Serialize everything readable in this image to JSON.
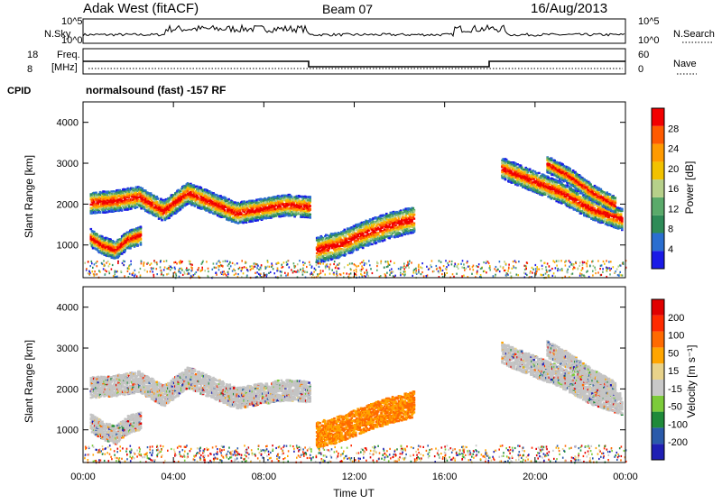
{
  "header": {
    "station": "Adak West (fitACF)",
    "beam": "Beam 07",
    "date": "16/Aug/2013"
  },
  "strips": {
    "nsky_label": "N.Sky",
    "nsky_ticks": [
      "10^5",
      "10^0"
    ],
    "nsearch_label": "N.Search",
    "nsearch_ticks": [
      "10^5",
      "10^0"
    ],
    "freq_label_top": "Freq.",
    "freq_label_unit": "[MHz]",
    "freq_ticks": [
      "18",
      "8"
    ],
    "nave_label": "Nave",
    "nave_ticks": [
      "60",
      "0"
    ],
    "cpid_label": "CPID",
    "cpid_text": "normalsound (fast) -157 RF"
  },
  "colors": {
    "power": [
      "#1a1ae6",
      "#2a6ed0",
      "#2e8b57",
      "#5aaa6a",
      "#b6d08a",
      "#f2c200",
      "#ff9a00",
      "#ff5a00",
      "#f20000"
    ],
    "velocity": [
      "#1f1fb4",
      "#2a5aaa",
      "#1f8a3a",
      "#7ccb3a",
      "#c8c8c8",
      "#e8d28a",
      "#ffa500",
      "#ff6a00",
      "#ff2a00",
      "#e00000"
    ],
    "ground_scatter": "#c4c4c4"
  },
  "chart_data": [
    {
      "type": "heatmap",
      "panel": "power",
      "x_ticks": [
        "00:00",
        "04:00",
        "08:00",
        "12:00",
        "16:00",
        "20:00",
        "00:00"
      ],
      "ylabel": "Slant Range [km]",
      "y_ticks": [
        1000,
        2000,
        3000,
        4000
      ],
      "ylim": [
        200,
        4500
      ],
      "colorbar_label": "Power [dB]",
      "colorbar_ticks": [
        "4",
        "8",
        "12",
        "16",
        "20",
        "24",
        "28"
      ],
      "bands": [
        {
          "t": [
            0.3,
            10.0
          ],
          "center": [
            2050,
            2100,
            2200,
            1850,
            2300,
            2050,
            1800,
            1900,
            2000,
            1950
          ],
          "width": 260
        },
        {
          "t": [
            0.3,
            2.5
          ],
          "center": [
            1200,
            1000,
            900,
            1150,
            1250
          ],
          "width": 220
        },
        {
          "t": [
            10.3,
            14.6
          ],
          "center": [
            900,
            1050,
            1300,
            1500,
            1650
          ],
          "width": 320
        },
        {
          "t": [
            18.5,
            23.8
          ],
          "center": [
            2900,
            2600,
            2300,
            1900,
            1650
          ],
          "width": 260
        },
        {
          "t": [
            20.5,
            23.5
          ],
          "center": [
            3000,
            2700,
            2300,
            2000
          ],
          "width": 200
        }
      ]
    },
    {
      "type": "heatmap",
      "panel": "velocity",
      "x_ticks": [
        "00:00",
        "04:00",
        "08:00",
        "12:00",
        "16:00",
        "20:00",
        "00:00"
      ],
      "xlabel": "Time UT",
      "ylabel": "Slant Range [km]",
      "y_ticks": [
        1000,
        2000,
        3000,
        4000
      ],
      "ylim": [
        200,
        4500
      ],
      "colorbar_label": "Velocity [m s⁻¹]",
      "colorbar_ticks": [
        "200",
        "100",
        "50",
        "15",
        "-15",
        "-50",
        "-100",
        "-200"
      ],
      "bands": [
        {
          "t": [
            0.3,
            10.0
          ],
          "center": [
            2050,
            2100,
            2200,
            1850,
            2300,
            2050,
            1800,
            1900,
            2000,
            1950
          ],
          "width": 260
        },
        {
          "t": [
            0.3,
            2.5
          ],
          "center": [
            1200,
            1000,
            900,
            1150,
            1250
          ],
          "width": 220
        },
        {
          "t": [
            10.3,
            14.6
          ],
          "center": [
            900,
            1050,
            1300,
            1500,
            1650
          ],
          "width": 320
        },
        {
          "t": [
            18.5,
            23.8
          ],
          "center": [
            2900,
            2600,
            2300,
            1900,
            1650
          ],
          "width": 260
        },
        {
          "t": [
            20.5,
            23.5
          ],
          "center": [
            3000,
            2700,
            2300,
            2000
          ],
          "width": 200
        }
      ]
    }
  ]
}
